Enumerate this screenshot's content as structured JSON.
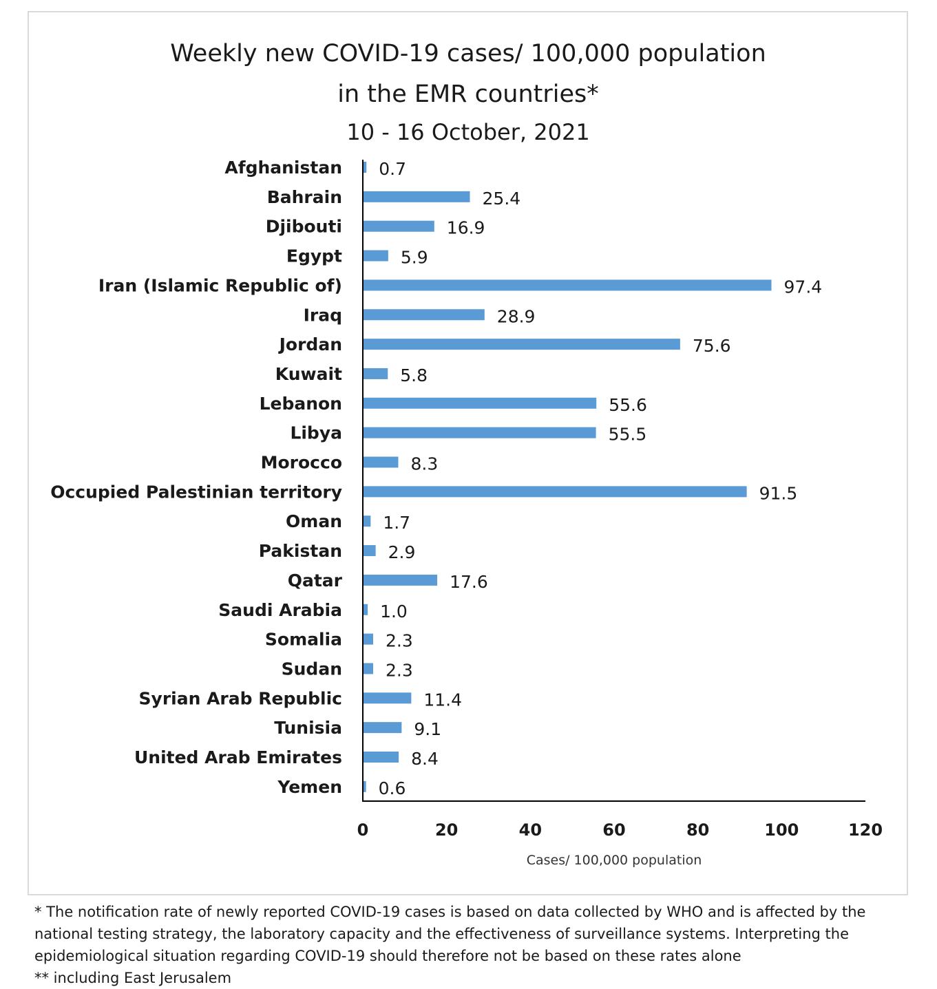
{
  "chart_data": {
    "type": "bar",
    "orientation": "horizontal",
    "title": "Weekly new COVID-19 cases/ 100,000 population",
    "title_line2": "in the EMR countries*",
    "subtitle": "10  - 16 October, 2021",
    "xlabel": "Cases/ 100,000 population",
    "ylabel": "",
    "xlim": [
      0,
      120
    ],
    "x_ticks": [
      "0",
      "20",
      "40",
      "60",
      "80",
      "100",
      "120"
    ],
    "grid": false,
    "legend": "none",
    "bar_color": "#5b9bd5",
    "categories": [
      "Afghanistan",
      "Bahrain",
      "Djibouti",
      "Egypt",
      "Iran (Islamic Republic of)",
      "Iraq",
      "Jordan",
      "Kuwait",
      "Lebanon",
      "Libya",
      "Morocco",
      "Occupied Palestinian territory",
      "Oman",
      "Pakistan",
      "Qatar",
      "Saudi Arabia",
      "Somalia",
      "Sudan",
      "Syrian Arab Republic",
      "Tunisia",
      "United Arab Emirates",
      "Yemen"
    ],
    "values": [
      0.7,
      25.4,
      16.9,
      5.9,
      97.4,
      28.9,
      75.6,
      5.8,
      55.6,
      55.5,
      8.3,
      91.5,
      1.7,
      2.9,
      17.6,
      1.0,
      2.3,
      2.3,
      11.4,
      9.1,
      8.4,
      0.6
    ],
    "value_labels": [
      "0.7",
      "25.4",
      "16.9",
      "5.9",
      "97.4",
      "28.9",
      "75.6",
      "5.8",
      "55.6",
      "55.5",
      "8.3",
      "91.5",
      "1.7",
      "2.9",
      "17.6",
      "1.0",
      "2.3",
      "2.3",
      "11.4",
      "9.1",
      "8.4",
      "0.6"
    ]
  },
  "footnote": {
    "line1": "* The notification rate of newly reported COVID-19 cases is based on data collected by WHO and is affected by the",
    "line2": "national testing strategy, the laboratory capacity and the effectiveness of surveillance systems. Interpreting the",
    "line3": "epidemiological situation regarding COVID-19 should therefore not be based on these rates alone",
    "line4": "** including East Jerusalem"
  }
}
